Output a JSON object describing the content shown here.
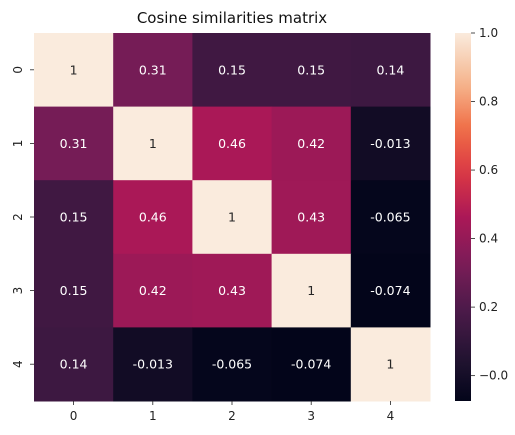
{
  "chart_data": {
    "type": "heatmap",
    "title": "Cosine similarities matrix",
    "xlabel": "",
    "ylabel": "",
    "x_categories": [
      "0",
      "1",
      "2",
      "3",
      "4"
    ],
    "y_categories": [
      "0",
      "1",
      "2",
      "3",
      "4"
    ],
    "values": [
      [
        1,
        0.31,
        0.15,
        0.15,
        0.14
      ],
      [
        0.31,
        1,
        0.46,
        0.42,
        -0.013
      ],
      [
        0.15,
        0.46,
        1,
        0.43,
        -0.065
      ],
      [
        0.15,
        0.42,
        0.43,
        1,
        -0.074
      ],
      [
        0.14,
        -0.013,
        -0.065,
        -0.074,
        1
      ]
    ],
    "annotations": [
      [
        "1",
        "0.31",
        "0.15",
        "0.15",
        "0.14"
      ],
      [
        "0.31",
        "1",
        "0.46",
        "0.42",
        "-0.013"
      ],
      [
        "0.15",
        "0.46",
        "1",
        "0.43",
        "-0.065"
      ],
      [
        "0.15",
        "0.42",
        "0.43",
        "1",
        "-0.074"
      ],
      [
        "0.14",
        "-0.013",
        "-0.065",
        "-0.074",
        "1"
      ]
    ],
    "colorbar": {
      "vmin": -0.074,
      "vmax": 1,
      "ticks": [
        -0.0,
        0.2,
        0.4,
        0.6,
        0.8,
        1.0
      ],
      "tick_labels": [
        "−0.0",
        "0.2",
        "0.4",
        "0.6",
        "0.8",
        "1.0"
      ],
      "colormap": "rocket"
    },
    "grid": false,
    "legend": "colorbar-right"
  }
}
